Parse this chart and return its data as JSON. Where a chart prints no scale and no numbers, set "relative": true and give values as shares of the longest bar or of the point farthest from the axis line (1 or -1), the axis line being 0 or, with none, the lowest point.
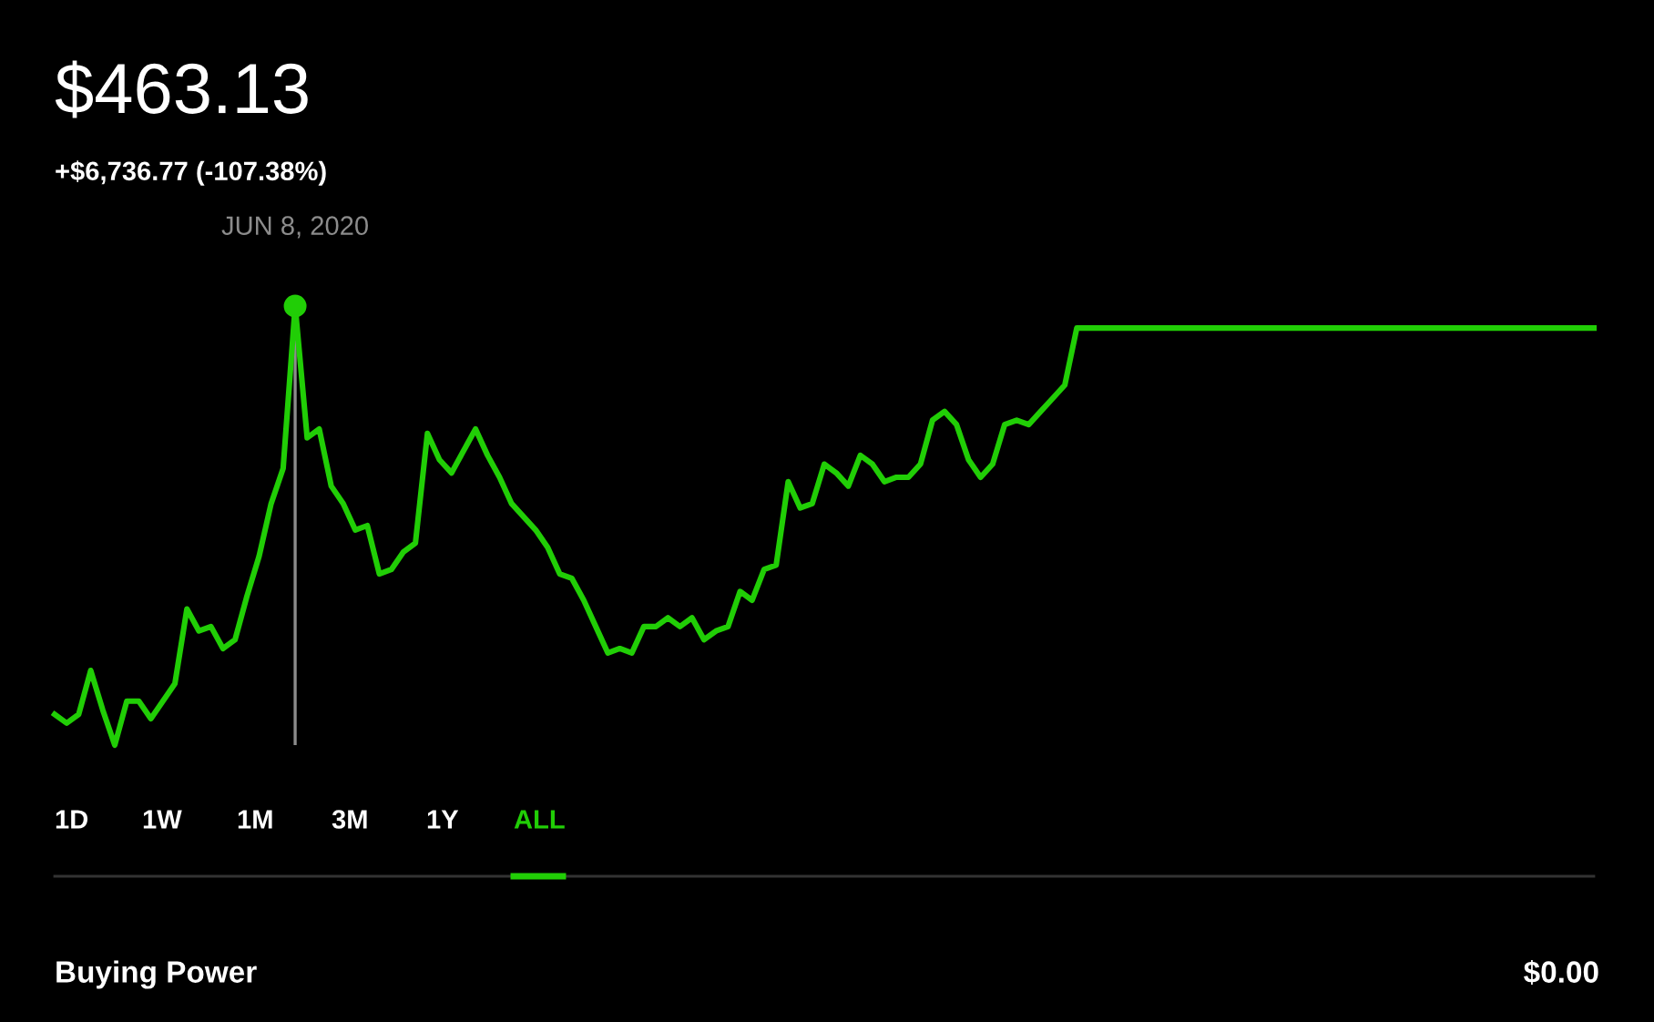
{
  "chart_data": {
    "type": "line",
    "relative": true,
    "title": "$463.13",
    "subtitle": "+$6,736.77 (-107.38%)",
    "categories": [
      null,
      null,
      null,
      null,
      null,
      null,
      null,
      null,
      null,
      null,
      null,
      null,
      null,
      null,
      null,
      null,
      null,
      null,
      null,
      null,
      null,
      null,
      null,
      null,
      null,
      null,
      null,
      null,
      null,
      null,
      null,
      null,
      null,
      null,
      null,
      null,
      null,
      null,
      null,
      null,
      null,
      null,
      null,
      null,
      null,
      null,
      null,
      null,
      null,
      null,
      null,
      null,
      null,
      null,
      null,
      null,
      null,
      null,
      null,
      null,
      null,
      null,
      null,
      null,
      null,
      null,
      null,
      null,
      null,
      null,
      null,
      null,
      null,
      null,
      null,
      null,
      null,
      null,
      null,
      null,
      null,
      null,
      null,
      null,
      null,
      null,
      null,
      null,
      null,
      null,
      null,
      null,
      null,
      null,
      null,
      null,
      null,
      null,
      null,
      null,
      null,
      null,
      null,
      null,
      null,
      null,
      null,
      null,
      null,
      null,
      null,
      null,
      null,
      null,
      null,
      null,
      null,
      null,
      null,
      null,
      null,
      null,
      null,
      null,
      null,
      null,
      null,
      null,
      null
    ],
    "series": [
      {
        "color": "#21ce06",
        "values": [
          0.07,
          0.05,
          0.07,
          0.17,
          0.08,
          0,
          0.1,
          0.1,
          0.06,
          0.1,
          0.14,
          0.31,
          0.26,
          0.27,
          0.22,
          0.24,
          0.34,
          0.43,
          0.55,
          0.63,
          1,
          0.7,
          0.72,
          0.59,
          0.55,
          0.49,
          0.5,
          0.39,
          0.4,
          0.44,
          0.46,
          0.71,
          0.65,
          0.62,
          0.67,
          0.72,
          0.66,
          0.61,
          0.55,
          0.52,
          0.49,
          0.45,
          0.39,
          0.38,
          0.33,
          0.27,
          0.21,
          0.22,
          0.21,
          0.27,
          0.27,
          0.29,
          0.27,
          0.29,
          0.24,
          0.26,
          0.27,
          0.35,
          0.33,
          0.4,
          0.41,
          0.6,
          0.54,
          0.55,
          0.64,
          0.62,
          0.59,
          0.66,
          0.64,
          0.6,
          0.61,
          0.61,
          0.64,
          0.74,
          0.76,
          0.73,
          0.65,
          0.61,
          0.64,
          0.73,
          0.74,
          0.73,
          0.76,
          0.79,
          0.82,
          0.95,
          0.95,
          0.95,
          0.95,
          0.95,
          0.95,
          0.95,
          0.95,
          0.95,
          0.95,
          0.95,
          0.95,
          0.95,
          0.95,
          0.95,
          0.95,
          0.95,
          0.95,
          0.95,
          0.95,
          0.95,
          0.95,
          0.95,
          0.95,
          0.95,
          0.95,
          0.95,
          0.95,
          0.95,
          0.95,
          0.95,
          0.95,
          0.95,
          0.95,
          0.95,
          0.95,
          0.95,
          0.95,
          0.95,
          0.95,
          0.95,
          0.95,
          0.95,
          0.95
        ]
      }
    ],
    "annotations": [
      "JUN 8, 2020",
      "1D",
      "1W",
      "1M",
      "3M",
      "1Y",
      "ALL",
      "Buying Power",
      "$0.00"
    ],
    "line_style": "solid"
  }
}
